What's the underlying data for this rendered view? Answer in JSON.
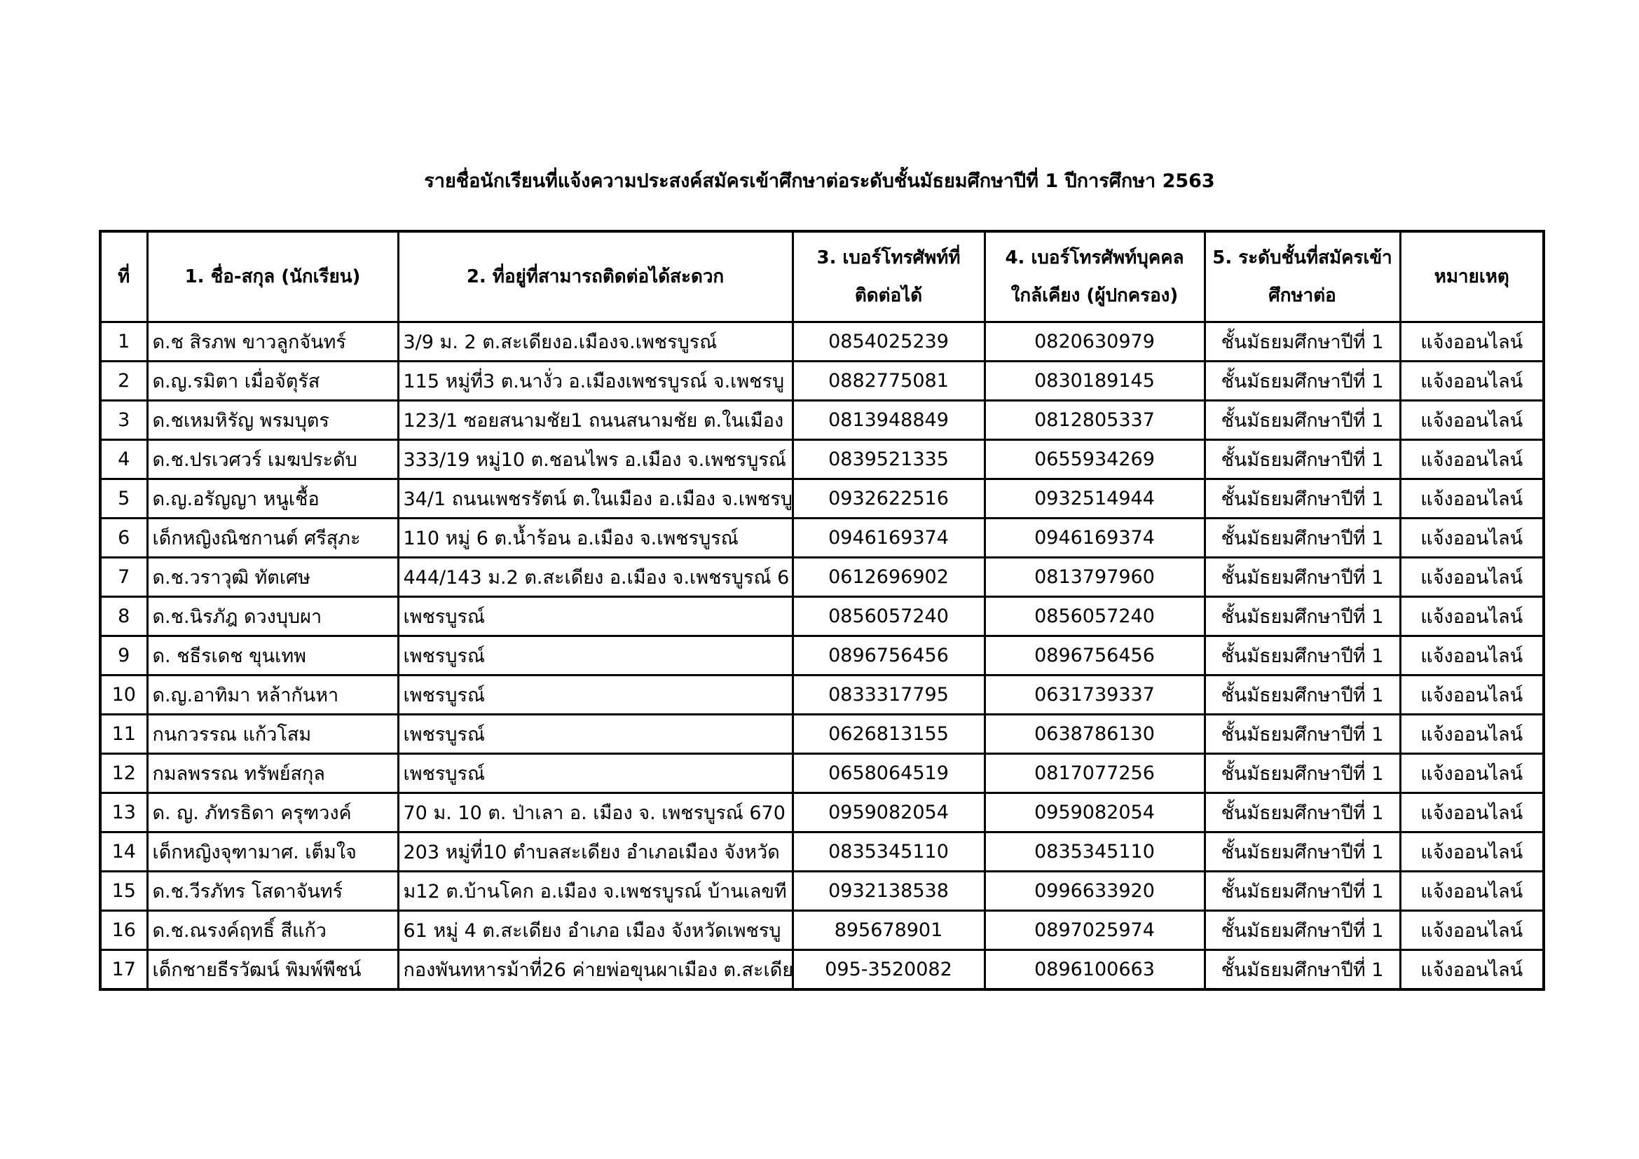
{
  "title": "รายชื่อนักเรียนที่แจ้งความประสงค์สมัครเข้าศึกษาต่อระดับชั้นมัธยมศึกษาปีที่ 1 ปีการศึกษา 2563",
  "columns": [
    "ที่",
    "1. ชื่อ-สกุล (นักเรียน)",
    "2. ที่อยู่ที่สามารถติดต่อได้สะดวก",
    "3. เบอร์โทรศัพท์ที่ติดต่อได้",
    "4. เบอร์โทรศัพท์บุคคลใกล้เคียง (ผู้ปกครอง)",
    "5. ระดับชั้นที่สมัครเข้าศึกษาต่อ",
    "หมายเหตุ"
  ],
  "rows": [
    [
      "1",
      "ด.ช สิรภพ ขาวลูกจันทร์",
      "3/9 ม. 2 ต.สะเดียงอ.เมืองจ.เพชรบูรณ์",
      "0854025239",
      "0820630979",
      "ชั้นมัธยมศึกษาปีที่ 1",
      "แจ้งออนไลน์"
    ],
    [
      "2",
      "ด.ญ.รมิตา เมื่อจัตุรัส",
      "115 หมู่ที่3 ต.นางั่ว อ.เมืองเพชรบูรณ์ จ.เพชรบู",
      "0882775081",
      "0830189145",
      "ชั้นมัธยมศึกษาปีที่ 1",
      "แจ้งออนไลน์"
    ],
    [
      "3",
      "ด.ชเหมหิรัญ พรมบุตร",
      "123/1 ซอยสนามชัย1 ถนนสนามชัย ต.ในเมือง",
      "0813948849",
      "0812805337",
      "ชั้นมัธยมศึกษาปีที่ 1",
      "แจ้งออนไลน์"
    ],
    [
      "4",
      "ด.ช.ปรเวศวร์ เมฆประดับ",
      "333/19 หมู่10 ต.ชอนไพร อ.เมือง จ.เพชรบูรณ์",
      "0839521335",
      "0655934269",
      "ชั้นมัธยมศึกษาปีที่ 1",
      "แจ้งออนไลน์"
    ],
    [
      "5",
      "ด.ญ.อรัญญา หนูเชื้อ",
      "34/1 ถนนเพชรรัตน์ ต.ในเมือง อ.เมือง จ.เพชรบู",
      "0932622516",
      "0932514944",
      "ชั้นมัธยมศึกษาปีที่ 1",
      "แจ้งออนไลน์"
    ],
    [
      "6",
      "เด็กหญิงณิชกานต์ ศรีสุภะ",
      "110  หมู่ 6 ต.น้ำร้อน อ.เมือง จ.เพชรบูรณ์",
      "0946169374",
      "0946169374",
      "ชั้นมัธยมศึกษาปีที่ 1",
      "แจ้งออนไลน์"
    ],
    [
      "7",
      "ด.ช.วราวุฒิ  ทัตเศษ",
      "444/143 ม.2 ต.สะเดียง อ.เมือง จ.เพชรบูรณ์ 6",
      "0612696902",
      "0813797960",
      "ชั้นมัธยมศึกษาปีที่ 1",
      "แจ้งออนไลน์"
    ],
    [
      "8",
      "ด.ช.นิรภัฎ  ดวงบุบผา",
      "เพชรบูรณ์",
      "0856057240",
      "0856057240",
      "ชั้นมัธยมศึกษาปีที่ 1",
      "แจ้งออนไลน์"
    ],
    [
      "9",
      "ด. ชธีรเดช ขุนเทพ",
      "เพชรบูรณ์",
      "0896756456",
      "0896756456",
      "ชั้นมัธยมศึกษาปีที่ 1",
      "แจ้งออนไลน์"
    ],
    [
      "10",
      "ด.ญ.อาทิมา หล้ากันหา",
      "เพชรบูรณ์",
      "0833317795",
      "0631739337",
      "ชั้นมัธยมศึกษาปีที่ 1",
      "แจ้งออนไลน์"
    ],
    [
      "11",
      "กนกวรรณ แก้วโสม",
      "เพชรบูรณ์",
      "0626813155",
      "0638786130",
      "ชั้นมัธยมศึกษาปีที่ 1",
      "แจ้งออนไลน์"
    ],
    [
      "12",
      "กมลพรรณ  ทรัพย์สกุล",
      "เพชรบูรณ์",
      "0658064519",
      "0817077256",
      "ชั้นมัธยมศึกษาปีที่ 1",
      "แจ้งออนไลน์"
    ],
    [
      "13",
      "ด. ญ. ภัทรธิดา ครุฑวงค์",
      "70 ม. 10 ต. ป่าเลา อ. เมือง จ. เพชรบูรณ์ 670",
      "0959082054",
      "0959082054",
      "ชั้นมัธยมศึกษาปีที่ 1",
      "แจ้งออนไลน์"
    ],
    [
      "14",
      "เด็กหญิงจุฑามาศ. เต็มใจ",
      "203 หมู่ที่10 ตำบลสะเดียง อำเภอเมือง จังหวัด",
      "0835345110",
      "0835345110",
      "ชั้นมัธยมศึกษาปีที่ 1",
      "แจ้งออนไลน์"
    ],
    [
      "15",
      "ด.ช.วีรภัทร   โสดาจันทร์",
      "ม12 ต.บ้านโคก อ.เมือง จ.เพชรบูรณ์  บ้านเลขที",
      "0932138538",
      "0996633920",
      "ชั้นมัธยมศึกษาปีที่ 1",
      "แจ้งออนไลน์"
    ],
    [
      "16",
      "ด.ช.ณรงค์ฤทธิ์  สีแก้ว",
      "61 หมู่ 4 ต.สะเดียง อำเภอ เมือง จังหวัดเพชรบู",
      "895678901",
      "0897025974",
      "ชั้นมัธยมศึกษาปีที่ 1",
      "แจ้งออนไลน์"
    ],
    [
      "17",
      "เด็กชายธีรวัฒน์  พิมพ์พืชน์",
      "กองพันทหารม้าที่26 ค่ายพ่อขุนผาเมือง ต.สะเดีย",
      "095-3520082",
      "0896100663",
      "ชั้นมัธยมศึกษาปีที่ 1",
      "แจ้งออนไลน์"
    ]
  ]
}
